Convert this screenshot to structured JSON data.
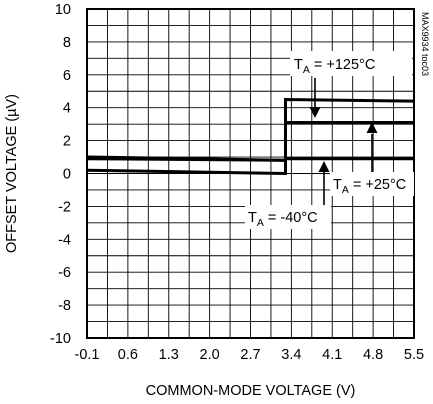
{
  "chart_data": {
    "type": "line",
    "title": "",
    "xlabel": "COMMON-MODE VOLTAGE (V)",
    "ylabel": "OFFSET VOLTAGE (µV)",
    "xlim": [
      -0.1,
      5.5
    ],
    "ylim": [
      -10,
      10
    ],
    "x_ticks": [
      -0.1,
      0.6,
      1.3,
      2.0,
      2.7,
      3.4,
      4.1,
      4.8,
      5.5
    ],
    "x_tick_labels": [
      "-0.1",
      "0.6",
      "1.3",
      "2.0",
      "2.7",
      "3.4",
      "4.1",
      "4.8",
      "5.5"
    ],
    "y_ticks": [
      10,
      8,
      6,
      4,
      2,
      0,
      -2,
      -4,
      -6,
      -8,
      -10
    ],
    "y_tick_labels": [
      "10",
      "8",
      "6",
      "4",
      "2",
      "0",
      "-2",
      "-4",
      "-6",
      "-8",
      "-10"
    ],
    "grid": true,
    "code_label": "MAX9934 toc03",
    "series": [
      {
        "annotation_main": "T",
        "annotation_sub": "A",
        "annotation_rest": " = +125°C",
        "x": [
          -0.1,
          3.3,
          3.3,
          5.5
        ],
        "y": [
          0.2,
          0.0,
          4.5,
          4.4
        ]
      },
      {
        "annotation_main": "T",
        "annotation_sub": "A",
        "annotation_rest": " = +25°C",
        "x": [
          -0.1,
          3.3,
          3.3,
          5.5
        ],
        "y": [
          1.0,
          0.8,
          3.1,
          3.1
        ]
      },
      {
        "annotation_main": "T",
        "annotation_sub": "A",
        "annotation_rest": " = -40°C",
        "x": [
          -0.1,
          3.3,
          3.3,
          5.5
        ],
        "y": [
          0.9,
          0.8,
          0.9,
          0.9
        ]
      }
    ]
  }
}
